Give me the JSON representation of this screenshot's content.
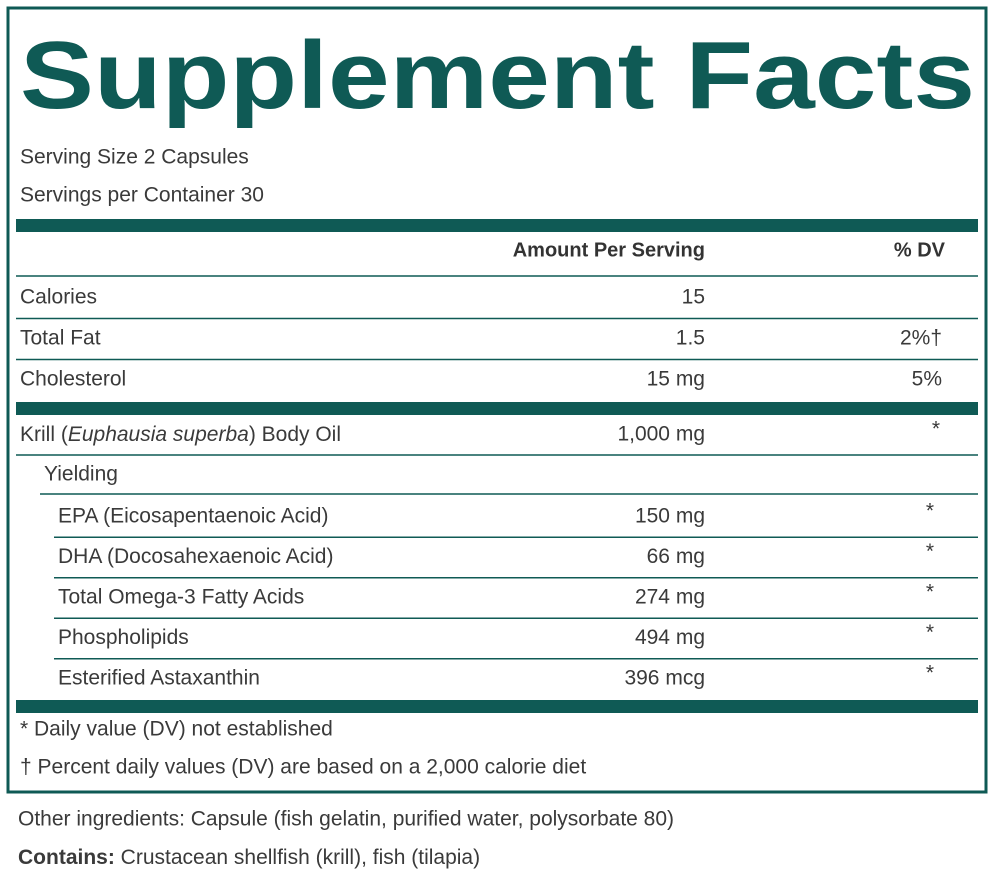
{
  "title": "Supplement Facts",
  "serving_size": "Serving Size 2 Capsules",
  "servings_per_container": "Servings per Container 30",
  "header": {
    "amount": "Amount Per Serving",
    "dv": "% DV"
  },
  "rows": [
    {
      "name": "Calories",
      "amount": "15"
    },
    {
      "name": "Total Fat",
      "amount": "1.5",
      "dv": "2%†"
    },
    {
      "name": "Cholesterol",
      "amount": "15 mg",
      "dv": "5%"
    }
  ],
  "krill": {
    "name_before": "Krill (",
    "name_italic": "Euphausia superba",
    "name_after": ") Body Oil",
    "amount": "1,000 mg",
    "dv": "*"
  },
  "yielding": "Yielding",
  "sub_rows": [
    {
      "name": "EPA (Eicosapentaenoic Acid)",
      "amount": "150 mg",
      "dv": "*"
    },
    {
      "name": "DHA (Docosahexaenoic Acid)",
      "amount": "66 mg",
      "dv": "*"
    },
    {
      "name": "Total Omega-3 Fatty Acids",
      "amount": "274 mg",
      "dv": "*"
    },
    {
      "name": "Phospholipids",
      "amount": "494 mg",
      "dv": "*"
    },
    {
      "name": "Esterified Astaxanthin",
      "amount": "396 mcg",
      "dv": "*"
    }
  ],
  "footnotes": [
    "* Daily value (DV) not established",
    "† Percent daily values (DV) are based on a 2,000 calorie diet"
  ],
  "other_ingredients": "Other ingredients: Capsule (fish gelatin, purified water, polysorbate 80)",
  "contains": {
    "label": "Contains:",
    "text": " Crustacean shellfish (krill), fish (tilapia)"
  }
}
